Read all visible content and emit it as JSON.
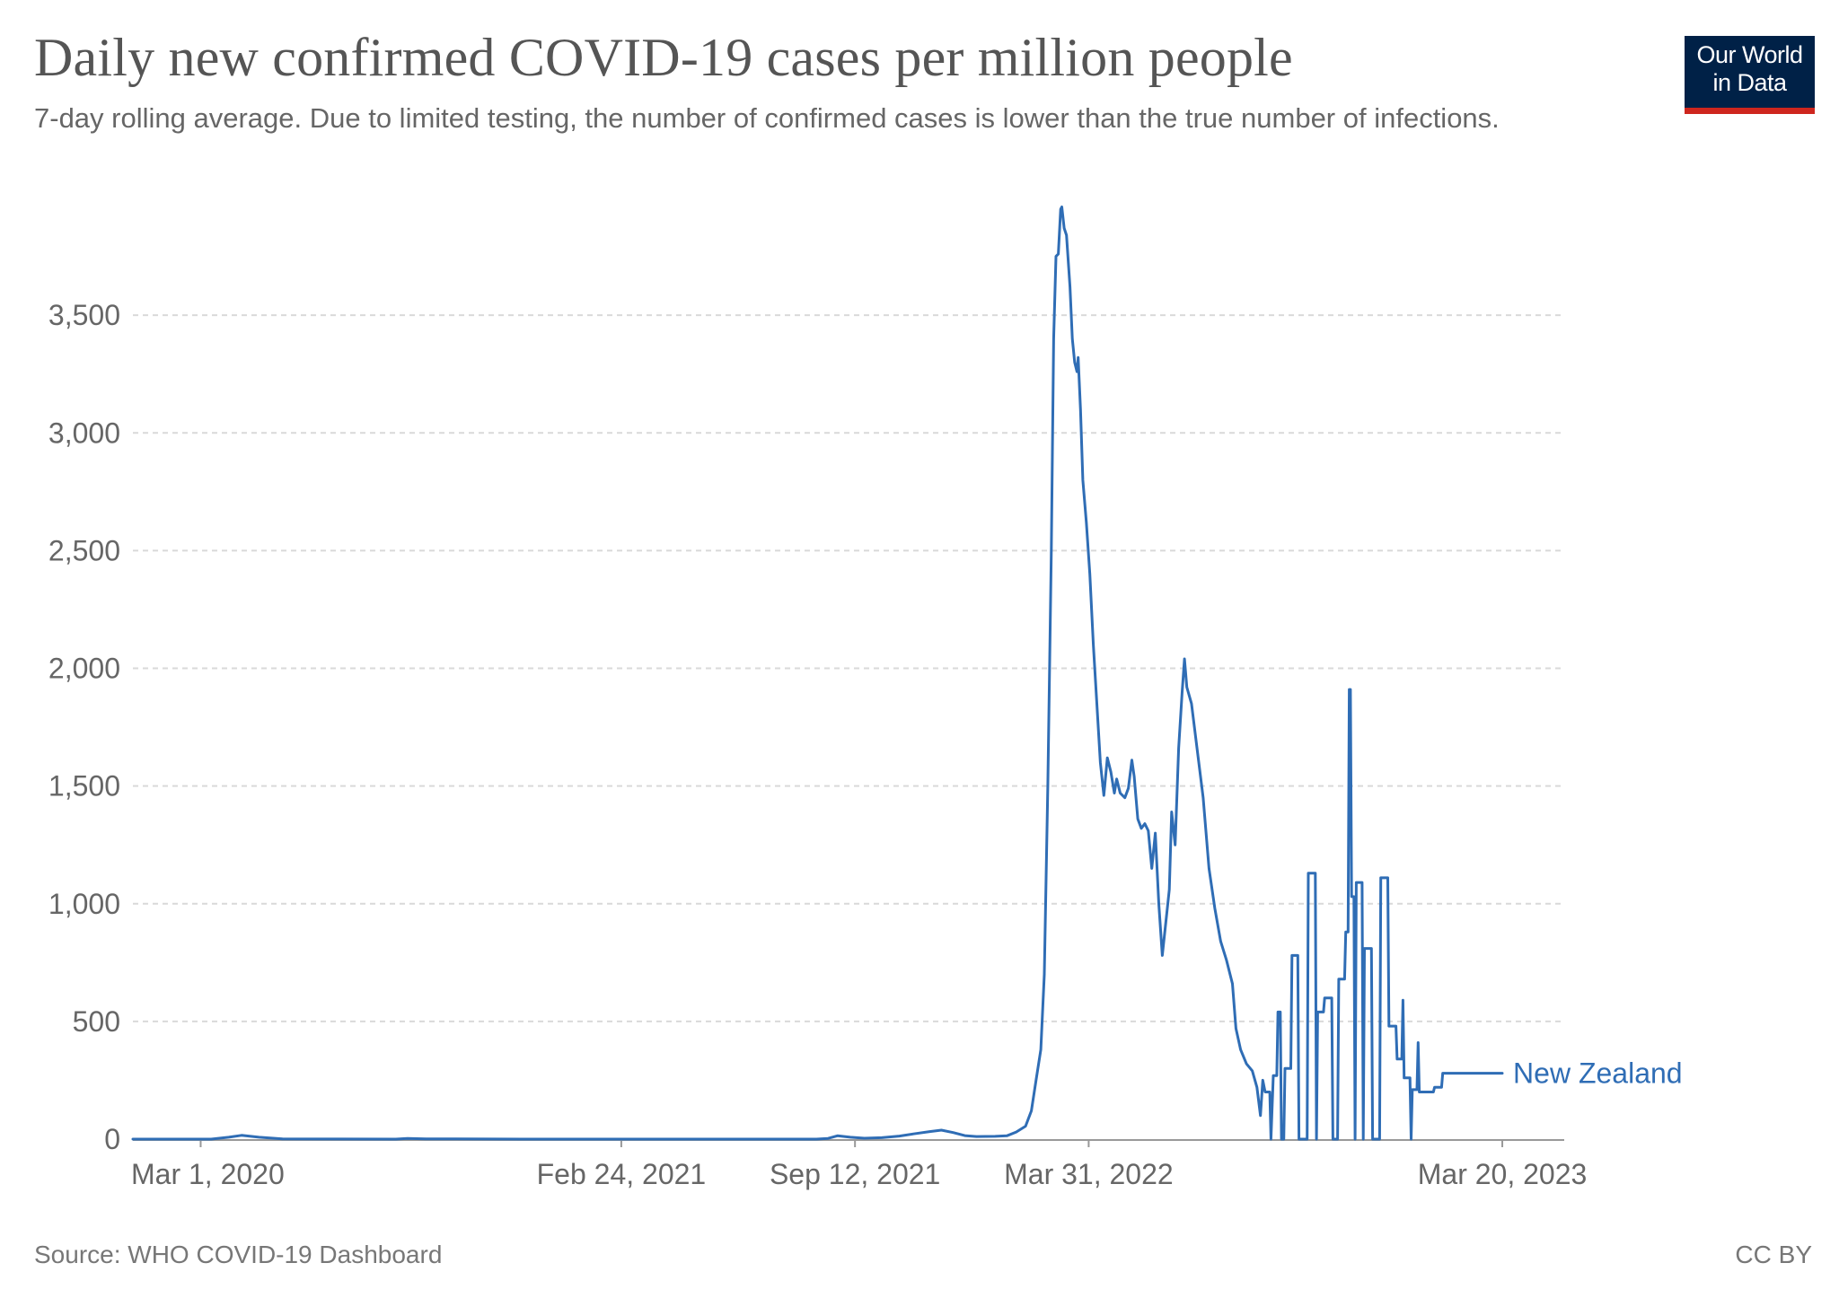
{
  "header": {
    "title": "Daily new confirmed COVID-19 cases per million people",
    "subtitle": "7-day rolling average. Due to limited testing, the number of confirmed cases is lower than the true number of infections."
  },
  "logo": {
    "line1": "Our World",
    "line2": "in Data"
  },
  "footer": {
    "source": "Source: WHO COVID-19 Dashboard",
    "license": "CC BY"
  },
  "colors": {
    "series": "#2f6db5",
    "grid": "#d9d9d9",
    "axis_text": "#666666",
    "logo_bg": "#002147",
    "logo_accent": "#ce261e"
  },
  "chart_data": {
    "type": "line",
    "title": "Daily new confirmed COVID-19 cases per million people",
    "ylim": [
      0,
      4000
    ],
    "xlim": [
      "2020-01-03",
      "2023-05-12"
    ],
    "y_ticks": [
      0,
      500,
      1000,
      1500,
      2000,
      2500,
      3000,
      3500
    ],
    "y_tick_labels": [
      "0",
      "500",
      "1,000",
      "1,500",
      "2,000",
      "2,500",
      "3,000",
      "3,500"
    ],
    "x_ticks": [
      "2020-03-01",
      "2021-02-24",
      "2021-09-12",
      "2022-03-31",
      "2023-03-20"
    ],
    "x_tick_labels": [
      "Mar 1, 2020",
      "Feb 24, 2021",
      "Sep 12, 2021",
      "Mar 31, 2022",
      "Mar 20, 2023"
    ],
    "grid": "horizontal dashed",
    "series": [
      {
        "name": "New Zealand",
        "color": "#2f6db5",
        "points": [
          [
            "2020-01-03",
            0
          ],
          [
            "2020-03-10",
            0
          ],
          [
            "2020-03-25",
            8
          ],
          [
            "2020-04-05",
            16
          ],
          [
            "2020-04-20",
            8
          ],
          [
            "2020-05-10",
            1
          ],
          [
            "2020-08-15",
            0
          ],
          [
            "2020-08-25",
            3
          ],
          [
            "2020-09-10",
            1
          ],
          [
            "2020-12-01",
            0
          ],
          [
            "2021-03-01",
            0
          ],
          [
            "2021-06-01",
            0
          ],
          [
            "2021-08-10",
            0
          ],
          [
            "2021-08-20",
            3
          ],
          [
            "2021-08-28",
            14
          ],
          [
            "2021-09-08",
            8
          ],
          [
            "2021-09-20",
            4
          ],
          [
            "2021-10-05",
            6
          ],
          [
            "2021-10-20",
            13
          ],
          [
            "2021-11-01",
            22
          ],
          [
            "2021-11-15",
            32
          ],
          [
            "2021-11-25",
            38
          ],
          [
            "2021-12-05",
            28
          ],
          [
            "2021-12-15",
            15
          ],
          [
            "2021-12-25",
            11
          ],
          [
            "2022-01-10",
            12
          ],
          [
            "2022-01-20",
            14
          ],
          [
            "2022-01-28",
            30
          ],
          [
            "2022-02-05",
            55
          ],
          [
            "2022-02-10",
            120
          ],
          [
            "2022-02-14",
            250
          ],
          [
            "2022-02-18",
            380
          ],
          [
            "2022-02-21",
            700
          ],
          [
            "2022-02-24",
            1500
          ],
          [
            "2022-02-27",
            2500
          ],
          [
            "2022-03-01",
            3400
          ],
          [
            "2022-03-03",
            3750
          ],
          [
            "2022-03-05",
            3760
          ],
          [
            "2022-03-07",
            3950
          ],
          [
            "2022-03-08",
            3960
          ],
          [
            "2022-03-10",
            3870
          ],
          [
            "2022-03-12",
            3840
          ],
          [
            "2022-03-15",
            3620
          ],
          [
            "2022-03-17",
            3400
          ],
          [
            "2022-03-19",
            3300
          ],
          [
            "2022-03-21",
            3260
          ],
          [
            "2022-03-22",
            3320
          ],
          [
            "2022-03-24",
            3100
          ],
          [
            "2022-03-26",
            2800
          ],
          [
            "2022-03-29",
            2620
          ],
          [
            "2022-04-01",
            2400
          ],
          [
            "2022-04-04",
            2100
          ],
          [
            "2022-04-07",
            1850
          ],
          [
            "2022-04-10",
            1600
          ],
          [
            "2022-04-13",
            1460
          ],
          [
            "2022-04-16",
            1620
          ],
          [
            "2022-04-19",
            1560
          ],
          [
            "2022-04-22",
            1470
          ],
          [
            "2022-04-24",
            1530
          ],
          [
            "2022-04-27",
            1470
          ],
          [
            "2022-05-01",
            1450
          ],
          [
            "2022-05-04",
            1490
          ],
          [
            "2022-05-07",
            1610
          ],
          [
            "2022-05-09",
            1540
          ],
          [
            "2022-05-12",
            1360
          ],
          [
            "2022-05-15",
            1320
          ],
          [
            "2022-05-18",
            1340
          ],
          [
            "2022-05-21",
            1310
          ],
          [
            "2022-05-24",
            1150
          ],
          [
            "2022-05-27",
            1300
          ],
          [
            "2022-05-30",
            1000
          ],
          [
            "2022-06-02",
            780
          ],
          [
            "2022-06-05",
            920
          ],
          [
            "2022-06-08",
            1060
          ],
          [
            "2022-06-10",
            1390
          ],
          [
            "2022-06-13",
            1250
          ],
          [
            "2022-06-16",
            1660
          ],
          [
            "2022-06-19",
            1900
          ],
          [
            "2022-06-21",
            2040
          ],
          [
            "2022-06-23",
            1920
          ],
          [
            "2022-06-27",
            1850
          ],
          [
            "2022-07-02",
            1650
          ],
          [
            "2022-07-07",
            1450
          ],
          [
            "2022-07-12",
            1150
          ],
          [
            "2022-07-17",
            980
          ],
          [
            "2022-07-22",
            840
          ],
          [
            "2022-07-27",
            760
          ],
          [
            "2022-08-01",
            660
          ],
          [
            "2022-08-04",
            470
          ],
          [
            "2022-08-08",
            380
          ],
          [
            "2022-08-13",
            320
          ],
          [
            "2022-08-18",
            290
          ],
          [
            "2022-08-22",
            220
          ],
          [
            "2022-08-25",
            100
          ],
          [
            "2022-08-27",
            250
          ],
          [
            "2022-08-29",
            200
          ],
          [
            "2022-09-02",
            200
          ],
          [
            "2022-09-03",
            0
          ],
          [
            "2022-09-05",
            270
          ],
          [
            "2022-09-08",
            270
          ],
          [
            "2022-09-09",
            540
          ],
          [
            "2022-09-11",
            540
          ],
          [
            "2022-09-12",
            0
          ],
          [
            "2022-09-14",
            0
          ],
          [
            "2022-09-15",
            300
          ],
          [
            "2022-09-20",
            300
          ],
          [
            "2022-09-21",
            780
          ],
          [
            "2022-09-26",
            780
          ],
          [
            "2022-09-27",
            0
          ],
          [
            "2022-10-04",
            0
          ],
          [
            "2022-10-05",
            1130
          ],
          [
            "2022-10-11",
            1130
          ],
          [
            "2022-10-12",
            0
          ],
          [
            "2022-10-13",
            540
          ],
          [
            "2022-10-18",
            540
          ],
          [
            "2022-10-19",
            600
          ],
          [
            "2022-10-25",
            600
          ],
          [
            "2022-10-26",
            0
          ],
          [
            "2022-10-30",
            0
          ],
          [
            "2022-10-31",
            680
          ],
          [
            "2022-11-05",
            680
          ],
          [
            "2022-11-06",
            880
          ],
          [
            "2022-11-08",
            880
          ],
          [
            "2022-11-09",
            1910
          ],
          [
            "2022-11-10",
            1910
          ],
          [
            "2022-11-11",
            1030
          ],
          [
            "2022-11-13",
            1030
          ],
          [
            "2022-11-14",
            0
          ],
          [
            "2022-11-15",
            1090
          ],
          [
            "2022-11-20",
            1090
          ],
          [
            "2022-11-21",
            0
          ],
          [
            "2022-11-22",
            810
          ],
          [
            "2022-11-28",
            810
          ],
          [
            "2022-11-29",
            0
          ],
          [
            "2022-12-05",
            0
          ],
          [
            "2022-12-06",
            1110
          ],
          [
            "2022-12-12",
            1110
          ],
          [
            "2022-12-13",
            480
          ],
          [
            "2022-12-19",
            480
          ],
          [
            "2022-12-20",
            340
          ],
          [
            "2022-12-24",
            340
          ],
          [
            "2022-12-25",
            590
          ],
          [
            "2022-12-26",
            260
          ],
          [
            "2022-12-31",
            260
          ],
          [
            "2023-01-01",
            0
          ],
          [
            "2023-01-02",
            210
          ],
          [
            "2023-01-06",
            210
          ],
          [
            "2023-01-07",
            410
          ],
          [
            "2023-01-08",
            200
          ],
          [
            "2023-01-20",
            200
          ],
          [
            "2023-01-21",
            220
          ],
          [
            "2023-01-27",
            220
          ],
          [
            "2023-01-28",
            280
          ],
          [
            "2023-02-03",
            280
          ],
          [
            "2023-02-04",
            280
          ],
          [
            "2023-03-20",
            280
          ]
        ]
      }
    ]
  }
}
